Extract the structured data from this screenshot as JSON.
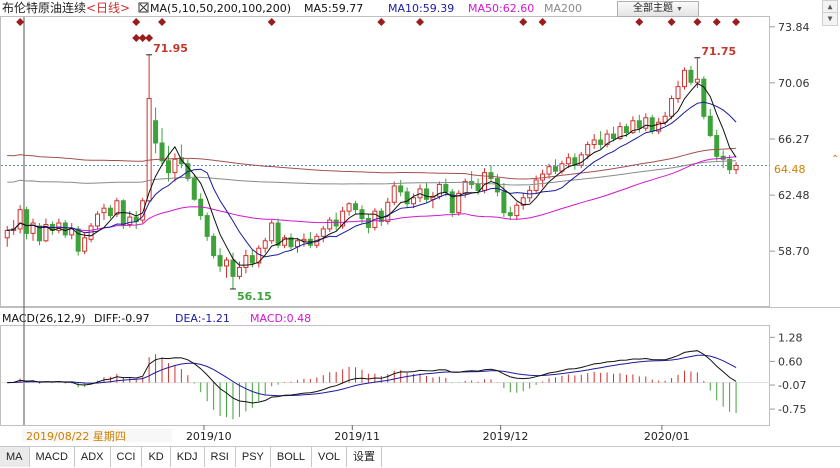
{
  "header": {
    "title": "布伦特原油连续",
    "period": "<日线>",
    "ma_box_label": "MA(5,10,50,200,100,200)",
    "ma5": "MA5:59.77",
    "ma10": "MA10:59.39",
    "ma50": "MA50:62.60",
    "ma200": "MA200"
  },
  "theme_button": {
    "label": "全部主题",
    "arrow": "▼"
  },
  "macd_header": {
    "params": "MACD(26,12,9)",
    "diff": "DIFF:-0.97",
    "dea": "DEA:-1.21",
    "macd": "MACD:0.48"
  },
  "cursor_date": "2019/08/22 星期四",
  "current_price_tag": "64.48",
  "tabs": [
    "MA",
    "MACD",
    "ADX",
    "CCI",
    "KD",
    "KDJ",
    "RSI",
    "PSY",
    "BOLL",
    "VOL",
    "设置"
  ],
  "colors": {
    "up": "#d0322e",
    "down": "#3ea23a",
    "ma5": "#111111",
    "ma10": "#1b1b9e",
    "ma50": "#d018d0",
    "ma200": "#8a8a8a",
    "ma100": "#a35050",
    "diff": "#111111",
    "dea": "#1b1b9e",
    "annotation": "#c0392b",
    "axis_text": "#333333"
  },
  "chart_data": [
    {
      "type": "candlestick",
      "y_axis_ticks": [
        "73.84",
        "70.06",
        "66.27",
        "62.48",
        "58.70"
      ],
      "ylim": [
        55.0,
        74.5
      ],
      "x_tick_labels": [
        "2019/10",
        "2019/11",
        "2019/12",
        "2020/01"
      ],
      "annotations": [
        {
          "label": "71.95",
          "kind": "high",
          "bar": 22
        },
        {
          "label": "56.15",
          "kind": "low",
          "bar": 35
        },
        {
          "label": "71.75",
          "kind": "high",
          "bar": 107
        }
      ],
      "ohlc": [
        [
          59.6,
          60.4,
          59.0,
          60.1
        ],
        [
          60.1,
          60.8,
          59.8,
          60.2
        ],
        [
          60.2,
          61.8,
          59.9,
          61.5
        ],
        [
          61.5,
          61.7,
          59.5,
          59.9
        ],
        [
          59.9,
          60.9,
          59.4,
          60.6
        ],
        [
          60.4,
          60.6,
          59.1,
          59.4
        ],
        [
          59.4,
          60.9,
          59.3,
          60.5
        ],
        [
          60.5,
          60.7,
          59.8,
          60.1
        ],
        [
          60.1,
          60.9,
          59.9,
          60.6
        ],
        [
          60.6,
          60.8,
          59.6,
          59.8
        ],
        [
          59.8,
          60.6,
          59.5,
          60.2
        ],
        [
          60.2,
          60.4,
          58.4,
          58.7
        ],
        [
          58.7,
          59.9,
          58.5,
          59.6
        ],
        [
          59.5,
          60.6,
          59.3,
          60.4
        ],
        [
          60.4,
          61.4,
          60.2,
          61.2
        ],
        [
          61.3,
          61.9,
          60.8,
          61.6
        ],
        [
          61.6,
          61.8,
          60.9,
          61.1
        ],
        [
          61.2,
          62.3,
          61.0,
          62.1
        ],
        [
          62.1,
          62.2,
          60.2,
          60.5
        ],
        [
          60.5,
          61.4,
          60.3,
          61.0
        ],
        [
          61.0,
          61.4,
          60.2,
          60.7
        ],
        [
          60.8,
          62.3,
          60.6,
          62.1
        ],
        [
          62.1,
          71.95,
          62.0,
          69.0
        ],
        [
          67.5,
          68.4,
          65.3,
          66.0
        ],
        [
          66.0,
          67.0,
          64.6,
          64.8
        ],
        [
          64.8,
          65.8,
          63.4,
          64.0
        ],
        [
          64.0,
          65.3,
          63.4,
          64.9
        ],
        [
          65.0,
          65.9,
          64.3,
          64.6
        ],
        [
          64.6,
          64.9,
          63.4,
          63.6
        ],
        [
          63.6,
          63.9,
          62.1,
          62.2
        ],
        [
          62.2,
          62.6,
          60.8,
          61.1
        ],
        [
          61.1,
          61.3,
          59.4,
          59.7
        ],
        [
          59.7,
          59.9,
          58.2,
          58.4
        ],
        [
          58.4,
          58.9,
          57.3,
          57.7
        ],
        [
          57.7,
          58.3,
          56.9,
          58.1
        ],
        [
          58.1,
          58.6,
          56.15,
          57.0
        ],
        [
          57.0,
          58.0,
          56.8,
          57.6
        ],
        [
          57.6,
          58.8,
          57.2,
          58.4
        ],
        [
          58.4,
          58.8,
          57.6,
          57.9
        ],
        [
          57.9,
          59.1,
          57.6,
          58.9
        ],
        [
          58.9,
          59.6,
          58.6,
          59.4
        ],
        [
          59.4,
          60.8,
          59.2,
          60.6
        ],
        [
          60.6,
          60.9,
          58.9,
          59.1
        ],
        [
          59.1,
          59.8,
          58.9,
          59.6
        ],
        [
          59.6,
          59.9,
          58.8,
          59.0
        ],
        [
          59.0,
          59.6,
          58.6,
          59.4
        ],
        [
          59.4,
          59.9,
          59.0,
          59.5
        ],
        [
          59.5,
          60.0,
          58.9,
          59.1
        ],
        [
          59.1,
          59.9,
          58.9,
          59.7
        ],
        [
          59.7,
          60.4,
          59.3,
          60.2
        ],
        [
          60.2,
          61.0,
          60.0,
          60.8
        ],
        [
          60.8,
          61.3,
          60.1,
          60.4
        ],
        [
          60.4,
          61.7,
          60.2,
          61.4
        ],
        [
          61.4,
          62.0,
          61.1,
          61.9
        ],
        [
          61.9,
          62.1,
          61.2,
          61.5
        ],
        [
          61.5,
          61.8,
          60.6,
          60.9
        ],
        [
          60.9,
          61.2,
          59.9,
          60.3
        ],
        [
          60.3,
          61.6,
          60.1,
          61.4
        ],
        [
          61.4,
          61.6,
          60.4,
          60.7
        ],
        [
          60.7,
          62.3,
          60.5,
          62.0
        ],
        [
          62.0,
          63.4,
          61.8,
          63.1
        ],
        [
          63.1,
          63.5,
          62.4,
          62.7
        ],
        [
          62.7,
          63.0,
          61.6,
          61.9
        ],
        [
          61.9,
          62.6,
          61.6,
          62.3
        ],
        [
          62.3,
          63.2,
          62.0,
          62.9
        ],
        [
          62.9,
          63.3,
          62.0,
          62.2
        ],
        [
          62.2,
          62.7,
          61.6,
          62.4
        ],
        [
          62.4,
          63.4,
          62.2,
          63.2
        ],
        [
          63.2,
          63.6,
          62.4,
          62.7
        ],
        [
          62.7,
          62.9,
          61.0,
          61.3
        ],
        [
          61.3,
          62.8,
          61.1,
          62.6
        ],
        [
          62.6,
          63.6,
          62.3,
          63.4
        ],
        [
          63.4,
          64.1,
          62.9,
          63.2
        ],
        [
          63.2,
          63.6,
          62.5,
          62.8
        ],
        [
          62.8,
          64.3,
          62.6,
          64.0
        ],
        [
          64.0,
          64.5,
          63.4,
          63.6
        ],
        [
          63.6,
          63.9,
          62.4,
          62.7
        ],
        [
          62.7,
          63.3,
          61.0,
          61.3
        ],
        [
          61.3,
          61.7,
          60.8,
          61.1
        ],
        [
          61.1,
          62.0,
          60.8,
          61.8
        ],
        [
          61.8,
          62.6,
          61.5,
          62.3
        ],
        [
          62.3,
          63.1,
          62.0,
          62.8
        ],
        [
          62.8,
          63.8,
          62.6,
          63.5
        ],
        [
          63.5,
          64.2,
          63.0,
          63.9
        ],
        [
          63.9,
          64.6,
          63.6,
          64.4
        ],
        [
          64.4,
          64.9,
          63.9,
          64.1
        ],
        [
          64.1,
          64.8,
          63.9,
          64.6
        ],
        [
          64.6,
          65.3,
          64.3,
          65.0
        ],
        [
          65.0,
          65.3,
          64.2,
          64.5
        ],
        [
          64.5,
          65.4,
          64.3,
          65.2
        ],
        [
          65.2,
          66.1,
          64.9,
          65.9
        ],
        [
          65.9,
          66.6,
          65.6,
          66.2
        ],
        [
          66.2,
          66.8,
          65.6,
          65.9
        ],
        [
          65.9,
          66.9,
          65.7,
          66.6
        ],
        [
          66.6,
          67.1,
          66.1,
          66.3
        ],
        [
          66.3,
          67.4,
          66.2,
          67.1
        ],
        [
          67.1,
          67.3,
          66.4,
          66.7
        ],
        [
          66.7,
          67.8,
          66.6,
          67.5
        ],
        [
          67.5,
          67.9,
          66.7,
          67.0
        ],
        [
          67.0,
          68.0,
          66.8,
          67.7
        ],
        [
          67.7,
          67.9,
          66.6,
          66.8
        ],
        [
          66.8,
          67.7,
          66.6,
          67.4
        ],
        [
          67.4,
          68.1,
          67.2,
          67.8
        ],
        [
          67.8,
          69.2,
          67.6,
          69.0
        ],
        [
          69.0,
          70.2,
          68.7,
          69.8
        ],
        [
          69.8,
          71.1,
          69.6,
          70.9
        ],
        [
          70.9,
          71.2,
          69.9,
          70.1
        ],
        [
          70.1,
          71.75,
          69.7,
          70.3
        ],
        [
          70.3,
          70.5,
          67.6,
          67.8
        ],
        [
          67.8,
          68.3,
          66.4,
          66.5
        ],
        [
          66.5,
          66.9,
          64.8,
          65.1
        ],
        [
          65.1,
          65.5,
          64.3,
          64.9
        ],
        [
          64.9,
          65.2,
          63.9,
          64.2
        ],
        [
          64.2,
          64.7,
          63.9,
          64.48
        ]
      ]
    },
    {
      "type": "bar+line",
      "name": "MACD",
      "y_axis_ticks": [
        "1.28",
        "0.60",
        "-0.07",
        "-0.75"
      ],
      "ylim": [
        -1.2,
        1.6
      ],
      "zero_line": 0.0
    }
  ]
}
